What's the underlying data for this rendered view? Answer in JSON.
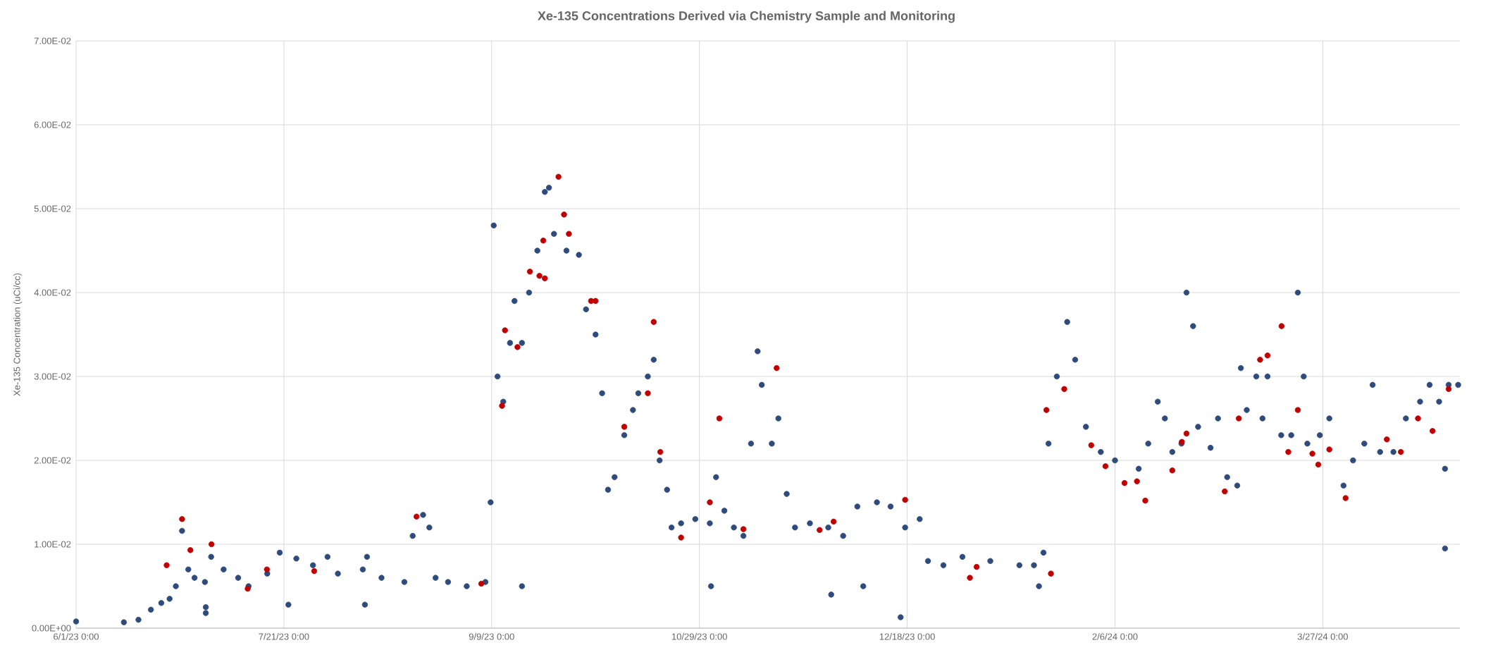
{
  "chart_data": {
    "type": "scatter",
    "title": "Xe-135 Concentrations Derived via Chemistry Sample and Monitoring",
    "ylabel": "Xe-135 Concentration (uCi/cc)",
    "xlim": [
      "2023-06-01",
      "2024-04-29"
    ],
    "ylim": [
      0,
      0.07
    ],
    "xticks": [
      {
        "value": "2023-06-01",
        "label": "6/1/23 0:00"
      },
      {
        "value": "2023-07-21",
        "label": "7/21/23 0:00"
      },
      {
        "value": "2023-09-09",
        "label": "9/9/23 0:00"
      },
      {
        "value": "2023-10-29",
        "label": "10/29/23 0:00"
      },
      {
        "value": "2023-12-18",
        "label": "12/18/23 0:00"
      },
      {
        "value": "2024-02-06",
        "label": "2/6/24 0:00"
      },
      {
        "value": "2024-03-27",
        "label": "3/27/24 0:00"
      }
    ],
    "yticks": [
      {
        "value": 0,
        "label": "0.00E+00"
      },
      {
        "value": 0.01,
        "label": "1.00E-02"
      },
      {
        "value": 0.02,
        "label": "2.00E-02"
      },
      {
        "value": 0.03,
        "label": "3.00E-02"
      },
      {
        "value": 0.04,
        "label": "4.00E-02"
      },
      {
        "value": 0.05,
        "label": "5.00E-02"
      },
      {
        "value": 0.06,
        "label": "6.00E-02"
      },
      {
        "value": 0.07,
        "label": "7.00E-02"
      }
    ],
    "grid": true,
    "marker": "circle",
    "series": [
      {
        "color": "#2f4b7c",
        "x": [
          "2023-06-01",
          "2023-06-12T12:00",
          "2023-06-16",
          "2023-06-19",
          "2023-06-21T12:00",
          "2023-06-23T12:00",
          "2023-06-25",
          "2023-06-26T12:00",
          "2023-06-28",
          "2023-06-29T12:00",
          "2023-07-02",
          "2023-07-03T12:00",
          "2023-07-06T12:00",
          "2023-07-10",
          "2023-07-12T12:00",
          "2023-07-17",
          "2023-07-20",
          "2023-07-24",
          "2023-07-28",
          "2023-07-31T12:00",
          "2023-08-03",
          "2023-08-09",
          "2023-08-10",
          "2023-08-13T12:00",
          "2023-08-19",
          "2023-08-21",
          "2023-08-23T12:00",
          "2023-08-25",
          "2023-08-26T12:00",
          "2023-08-29T12:00",
          "2023-09-03",
          "2023-09-07T12:00",
          "2023-09-08T18:00",
          "2023-09-09T12:00",
          "2023-09-10T10:00",
          "2023-09-11T19:00",
          "2023-09-13T10:00",
          "2023-09-14T12:00",
          "2023-09-16T07:00",
          "2023-09-18",
          "2023-09-20",
          "2023-09-21T19:00",
          "2023-09-22T19:00",
          "2023-09-24",
          "2023-09-27",
          "2023-09-30",
          "2023-10-01T17:00",
          "2023-10-04",
          "2023-10-05T14:00",
          "2023-10-07",
          "2023-10-08T14:00",
          "2023-10-10T22:00",
          "2023-10-13",
          "2023-10-14T07:00",
          "2023-10-16T14:00",
          "2023-10-18",
          "2023-10-19T10:00",
          "2023-10-21T05:00",
          "2023-10-22T07:00",
          "2023-10-24T14:00",
          "2023-10-28",
          "2023-10-31T12:00",
          "2023-11-02",
          "2023-11-04",
          "2023-11-06T07:00",
          "2023-11-08T14:00",
          "2023-11-10T10:00",
          "2023-11-12",
          "2023-11-13",
          "2023-11-15T10:00",
          "2023-11-17",
          "2023-11-19",
          "2023-11-21",
          "2023-11-24T14:00",
          "2023-11-29",
          "2023-12-02T14:00",
          "2023-12-06",
          "2023-12-10T17:00",
          "2023-12-14",
          "2023-12-17T12:00",
          "2023-12-21",
          "2023-12-23",
          "2023-12-26T17:00",
          "2023-12-31T07:00",
          "2024-01-07",
          "2024-01-14",
          "2024-01-17T12:00",
          "2024-01-18T17:00",
          "2024-01-19T19:00",
          "2024-01-21",
          "2024-01-23",
          "2024-01-25T12:00",
          "2024-01-27T10:00",
          "2024-01-30",
          "2024-02-02T14:00",
          "2024-02-06",
          "2024-02-11T17:00",
          "2024-02-14",
          "2024-02-16T07:00",
          "2024-02-18",
          "2024-02-19T19:00",
          "2024-02-22",
          "2024-02-23T05:00",
          "2024-02-24T19:00",
          "2024-02-26",
          "2024-02-29",
          "2024-03-01T19:00",
          "2024-03-04",
          "2024-03-06T10:00",
          "2024-03-07T07:00",
          "2024-03-08T17:00",
          "2024-03-11",
          "2024-03-12T12:00",
          "2024-03-13T17:00",
          "2024-03-17",
          "2024-03-19T10:00",
          "2024-03-21",
          "2024-03-22T10:00",
          "2024-03-23T07:00",
          "2024-03-26T07:00",
          "2024-03-28T14:00",
          "2024-04-01",
          "2024-04-03T07:00",
          "2024-04-06",
          "2024-04-08",
          "2024-04-09T19:00",
          "2024-04-13",
          "2024-04-16",
          "2024-04-19T10:00",
          "2024-04-21T17:00",
          "2024-04-24",
          "2024-04-26T07:00",
          "2024-04-28T14:00",
          "2023-07-02T05:00",
          "2023-07-02T05:00",
          "2023-07-22T02:00",
          "2023-08-09T12:00",
          "2023-09-16T07:00",
          "2023-10-31T19:00",
          "2023-11-29T17:00",
          "2023-12-07T10:00",
          "2023-12-16T10:00",
          "2024-04-25T10:00",
          "2024-04-25T10:00"
        ],
        "values": [
          0.0008,
          0.0007,
          0.001,
          0.0022,
          0.003,
          0.0035,
          0.005,
          0.0116,
          0.007,
          0.006,
          0.0055,
          0.0085,
          0.007,
          0.006,
          0.005,
          0.0065,
          0.009,
          0.0083,
          0.0075,
          0.0085,
          0.0065,
          0.007,
          0.0085,
          0.006,
          0.0055,
          0.011,
          0.0135,
          0.012,
          0.006,
          0.0055,
          0.005,
          0.0055,
          0.015,
          0.048,
          0.03,
          0.027,
          0.034,
          0.039,
          0.034,
          0.04,
          0.045,
          0.052,
          0.0525,
          0.047,
          0.045,
          0.0445,
          0.038,
          0.035,
          0.028,
          0.0165,
          0.018,
          0.023,
          0.026,
          0.028,
          0.03,
          0.032,
          0.02,
          0.0165,
          0.012,
          0.0125,
          0.013,
          0.0125,
          0.018,
          0.014,
          0.012,
          0.011,
          0.022,
          0.033,
          0.029,
          0.022,
          0.025,
          0.016,
          0.012,
          0.0125,
          0.012,
          0.011,
          0.0145,
          0.015,
          0.0145,
          0.012,
          0.013,
          0.008,
          0.0075,
          0.0085,
          0.008,
          0.0075,
          0.0075,
          0.005,
          0.009,
          0.022,
          0.03,
          0.0365,
          0.032,
          0.024,
          0.021,
          0.02,
          0.019,
          0.022,
          0.027,
          0.025,
          0.021,
          0.022,
          0.04,
          0.036,
          0.024,
          0.0215,
          0.025,
          0.018,
          0.017,
          0.031,
          0.026,
          0.03,
          0.025,
          0.03,
          0.023,
          0.023,
          0.04,
          0.03,
          0.022,
          0.023,
          0.025,
          0.017,
          0.02,
          0.022,
          0.029,
          0.021,
          0.021,
          0.025,
          0.027,
          0.029,
          0.027,
          0.029,
          0.029,
          0.0025,
          0.0018,
          0.0028,
          0.0028,
          0.005,
          0.005,
          0.004,
          0.005,
          0.0013,
          0.0095,
          0.019
        ]
      },
      {
        "color": "#c00000",
        "x": [
          "2023-06-26T12:00",
          "2023-06-22T19:00",
          "2023-07-03T14:00",
          "2023-06-28T12:00",
          "2023-07-12T07:00",
          "2023-07-16T22:00",
          "2023-07-28T07:00",
          "2023-08-21T22:00",
          "2023-09-06T12:00",
          "2023-09-12T05:00",
          "2023-09-11T12:00",
          "2023-09-15T05:00",
          "2023-09-18T05:00",
          "2023-09-21T10:00",
          "2023-09-20T12:00",
          "2023-09-21T19:00",
          "2023-09-25T02:00",
          "2023-09-26T10:00",
          "2023-09-27T14:00",
          "2023-10-02T22:00",
          "2023-10-04",
          "2023-10-18",
          "2023-10-10T22:00",
          "2023-10-16T14:00",
          "2023-10-19T14:00",
          "2023-10-24T14:00",
          "2023-11-02T19:00",
          "2023-10-31T12:00",
          "2023-11-16T14:00",
          "2023-11-08T14:00",
          "2023-11-26T22:00",
          "2023-11-30T07:00",
          "2023-12-17T12:00",
          "2024-01-03T17:00",
          "2024-01-02T02:00",
          "2024-01-21T14:00",
          "2024-01-20T12:00",
          "2024-01-24T19:00",
          "2024-01-31T07:00",
          "2024-02-03T17:00",
          "2024-02-08T07:00",
          "2024-02-11T07:00",
          "2024-02-13T07:00",
          "2024-02-19T19:00",
          "2024-02-22T02:00",
          "2024-02-23T05:00",
          "2024-03-03T10:00",
          "2024-03-06T19:00",
          "2024-03-11T22:00",
          "2024-03-13T17:00",
          "2024-03-17T02:00",
          "2024-03-18T17:00",
          "2024-03-21",
          "2024-03-24T12:00",
          "2024-03-25T22:00",
          "2024-03-28T14:00",
          "2024-04-01T12:00",
          "2024-04-11T10:00",
          "2024-04-14T19:00",
          "2024-04-18T22:00",
          "2024-04-22T10:00",
          "2024-04-26T07:00"
        ],
        "values": [
          0.013,
          0.0075,
          0.01,
          0.0093,
          0.0047,
          0.007,
          0.0068,
          0.0133,
          0.0053,
          0.0355,
          0.0265,
          0.0335,
          0.0425,
          0.0462,
          0.042,
          0.0417,
          0.0538,
          0.0493,
          0.047,
          0.039,
          0.039,
          0.0365,
          0.024,
          0.028,
          0.021,
          0.0108,
          0.025,
          0.015,
          0.031,
          0.0118,
          0.0117,
          0.0127,
          0.0153,
          0.0073,
          0.006,
          0.0065,
          0.026,
          0.0285,
          0.0218,
          0.0193,
          0.0173,
          0.0175,
          0.0152,
          0.0188,
          0.0222,
          0.0232,
          0.0163,
          0.025,
          0.032,
          0.0325,
          0.036,
          0.021,
          0.026,
          0.0208,
          0.0195,
          0.0213,
          0.0155,
          0.0225,
          0.021,
          0.025,
          0.0235,
          0.0285
        ]
      }
    ]
  }
}
